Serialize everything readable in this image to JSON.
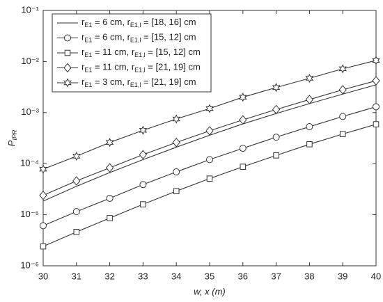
{
  "chart_data": {
    "type": "line",
    "xlabel": "w, x  (m)",
    "ylabel": "P_{IPR}",
    "x": [
      30,
      31,
      32,
      33,
      34,
      35,
      36,
      37,
      38,
      39,
      40
    ],
    "xlim": [
      30,
      40
    ],
    "xticks": [
      30,
      31,
      32,
      33,
      34,
      35,
      36,
      37,
      38,
      39,
      40
    ],
    "ylim": [
      1e-06,
      0.1
    ],
    "yscale": "log",
    "yticks": [
      {
        "value": 1e-06,
        "label": "10⁻⁶"
      },
      {
        "value": 1e-05,
        "label": "10⁻⁵"
      },
      {
        "value": 0.0001,
        "label": "10⁻⁴"
      },
      {
        "value": 0.001,
        "label": "10⁻³"
      },
      {
        "value": 0.01,
        "label": "10⁻²"
      },
      {
        "value": 0.1,
        "label": "10⁻¹"
      }
    ],
    "legend": "upper left",
    "series": [
      {
        "name": "r_{E1} = 6 cm, r_{E1,l} = [18, 16] cm",
        "color": "#333333",
        "marker": "none",
        "values": [
          1.85e-05,
          3.6e-05,
          6.7e-05,
          0.00012,
          0.00021,
          0.00036,
          0.0006,
          0.00096,
          0.0015,
          0.0023,
          0.0035
        ]
      },
      {
        "name": "r_{E1} = 6 cm, r_{E1,l} = [15, 12] cm",
        "color": "#333333",
        "marker": "circle",
        "values": [
          6.1e-06,
          1.15e-05,
          2.1e-05,
          3.9e-05,
          6.9e-05,
          0.00012,
          0.0002,
          0.00033,
          0.00053,
          0.00084,
          0.0013
        ]
      },
      {
        "name": "r_{E1} = 11 cm, r_{E1,l} = [15, 12] cm",
        "color": "#333333",
        "marker": "square",
        "values": [
          2.4e-06,
          4.6e-06,
          8.6e-06,
          1.6e-05,
          2.9e-05,
          5.1e-05,
          8.7e-05,
          0.000145,
          0.00024,
          0.00038,
          0.00059
        ]
      },
      {
        "name": "r_{E1} = 11 cm, r_{E1,l} = [21, 19] cm",
        "color": "#333333",
        "marker": "diamond",
        "values": [
          2.4e-05,
          4.6e-05,
          8.3e-05,
          0.00015,
          0.00026,
          0.00044,
          0.00072,
          0.00115,
          0.0018,
          0.0028,
          0.0042
        ]
      },
      {
        "name": "r_{E1} = 3 cm, r_{E1,l} = [21, 19] cm",
        "color": "#333333",
        "marker": "star",
        "values": [
          7.8e-05,
          0.00014,
          0.00026,
          0.00045,
          0.00075,
          0.0012,
          0.002,
          0.0031,
          0.0047,
          0.0072,
          0.0105
        ]
      }
    ]
  }
}
